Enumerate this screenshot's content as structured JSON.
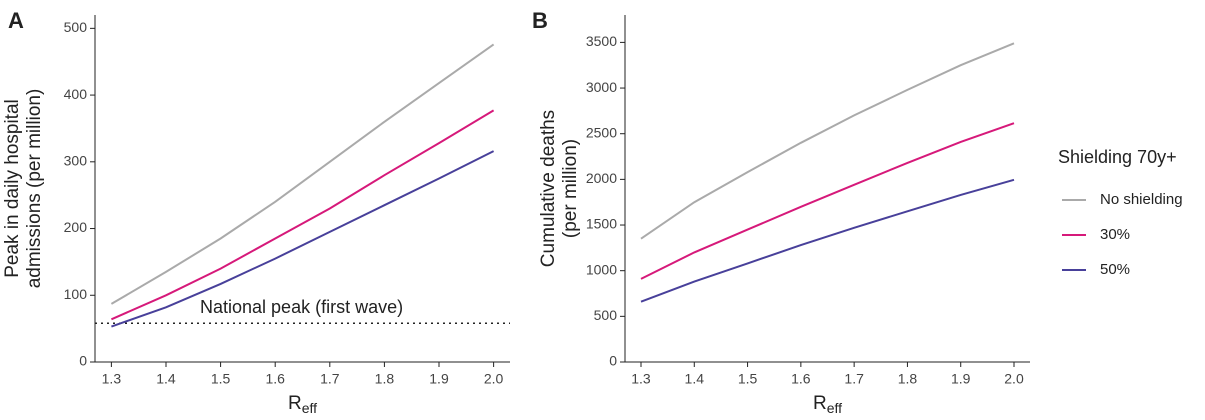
{
  "legend": {
    "title": "Shielding 70y+"
  },
  "chart_data": [
    {
      "type": "line",
      "panel": "A",
      "y_label": [
        "Peak in daily hospital",
        "admissions (per million)"
      ],
      "x_label": "R",
      "x_label_sub": "eff",
      "x": [
        1.3,
        1.4,
        1.5,
        1.6,
        1.7,
        1.8,
        1.9,
        2.0
      ],
      "xlim": [
        1.27,
        2.03
      ],
      "xticks": [
        1.3,
        1.4,
        1.5,
        1.6,
        1.7,
        1.8,
        1.9,
        {
          "value": 2.0,
          "label": "2.0"
        }
      ],
      "ylim": [
        0,
        520
      ],
      "yticks": [
        0,
        100,
        200,
        300,
        400,
        500
      ],
      "reference_line": 58,
      "annotation": "National peak (first wave)",
      "series": [
        {
          "name": "No shielding",
          "color": "#aaaaaa",
          "values": [
            87,
            135,
            185,
            240,
            300,
            360,
            418,
            476
          ]
        },
        {
          "name": "30%",
          "color": "#d6197a",
          "values": [
            64,
            100,
            140,
            185,
            230,
            280,
            328,
            377
          ]
        },
        {
          "name": "50%",
          "color": "#48409a",
          "values": [
            53,
            82,
            117,
            155,
            195,
            235,
            275,
            316
          ]
        }
      ]
    },
    {
      "type": "line",
      "panel": "B",
      "y_label": [
        "Cumulative deaths",
        "(per million)"
      ],
      "x_label": "R",
      "x_label_sub": "eff",
      "x": [
        1.3,
        1.4,
        1.5,
        1.6,
        1.7,
        1.8,
        1.9,
        2.0
      ],
      "xlim": [
        1.27,
        2.03
      ],
      "xticks": [
        1.3,
        1.4,
        1.5,
        1.6,
        1.7,
        1.8,
        1.9,
        {
          "value": 2.0,
          "label": "2.0"
        }
      ],
      "ylim": [
        0,
        3800
      ],
      "yticks": [
        0,
        500,
        1000,
        1500,
        2000,
        2500,
        3000,
        3500
      ],
      "series": [
        {
          "color": "#aaaaaa",
          "values": [
            1350,
            1750,
            2080,
            2400,
            2700,
            2980,
            3250,
            3490
          ]
        },
        {
          "color": "#d6197a",
          "values": [
            910,
            1200,
            1450,
            1700,
            1940,
            2180,
            2410,
            2615
          ]
        },
        {
          "color": "#48409a",
          "values": [
            660,
            880,
            1080,
            1280,
            1470,
            1650,
            1830,
            1995
          ]
        }
      ]
    }
  ]
}
